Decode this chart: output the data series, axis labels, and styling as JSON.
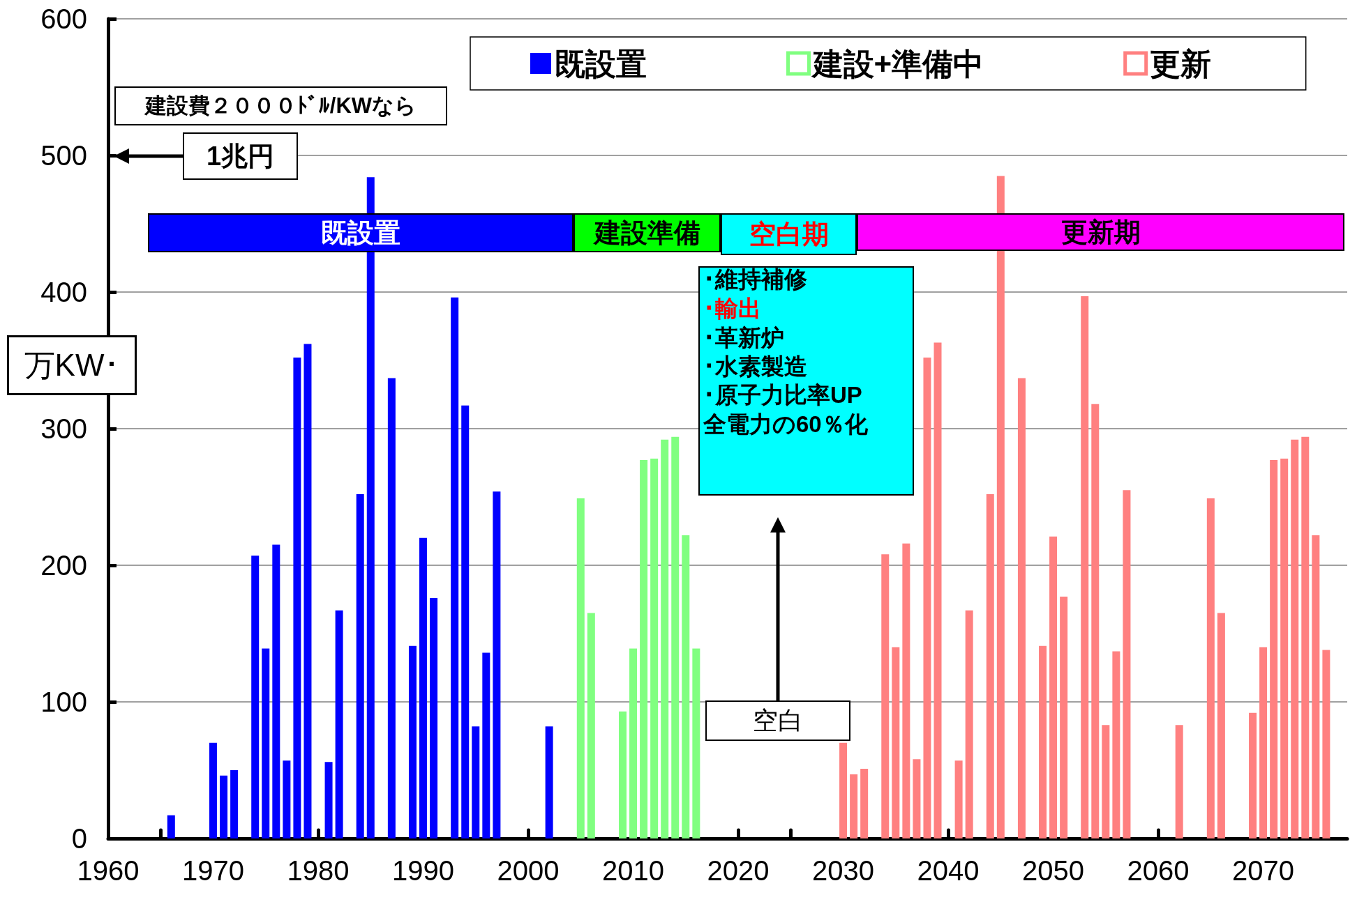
{
  "chart_data": {
    "type": "bar",
    "ylabel": "万KW･",
    "xlim": [
      1960,
      2078
    ],
    "xticks": [
      1960,
      {
        "value": 1965,
        "label": null
      },
      1970,
      {
        "value": 1975,
        "label": null
      },
      1980,
      {
        "value": 1985,
        "label": null
      },
      1990,
      {
        "value": 1995,
        "label": null
      },
      2000,
      {
        "value": 2005,
        "label": null
      },
      2010,
      {
        "value": 2015,
        "label": null
      },
      2020,
      {
        "value": 2025,
        "label": null
      },
      2030,
      {
        "value": 2035,
        "label": null
      },
      2040,
      {
        "value": 2045,
        "label": null
      },
      2050,
      {
        "value": 2055,
        "label": null
      },
      2060,
      {
        "value": 2065,
        "label": null
      },
      2070,
      {
        "value": 2075,
        "label": null
      }
    ],
    "ylim": [
      0,
      600
    ],
    "yticks": [
      0,
      100,
      200,
      300,
      400,
      500,
      600
    ],
    "grid": "y",
    "legend": "top right",
    "series": [
      {
        "name": "既設置",
        "color": "#0000ff",
        "x": [
          1966,
          1970,
          1971,
          1972,
          1974,
          1975,
          1976,
          1977,
          1978,
          1979,
          1981,
          1982,
          1984,
          1985,
          1987,
          1989,
          1990,
          1991,
          1993,
          1994,
          1995,
          1996,
          1997,
          2002
        ],
        "values": [
          17,
          70,
          46,
          50,
          207,
          139,
          215,
          57,
          352,
          362,
          56,
          167,
          252,
          484,
          337,
          141,
          220,
          176,
          396,
          317,
          82,
          136,
          254,
          82
        ]
      },
      {
        "name": "建設+準備中",
        "color": "#80ff80",
        "x": [
          2005,
          2006,
          2009,
          2010,
          2011,
          2012,
          2013,
          2014,
          2015,
          2016
        ],
        "values": [
          249,
          165,
          93,
          139,
          277,
          278,
          292,
          294,
          222,
          139
        ]
      },
      {
        "name": "更新",
        "color": "#ff8080",
        "x": [
          2030,
          2031,
          2032,
          2034,
          2035,
          2036,
          2037,
          2038,
          2039,
          2041,
          2042,
          2044,
          2045,
          2047,
          2049,
          2050,
          2051,
          2053,
          2054,
          2055,
          2056,
          2057,
          2062,
          2065,
          2066,
          2069,
          2070,
          2071,
          2072,
          2073,
          2074,
          2075,
          2076
        ],
        "values": [
          70,
          47,
          51,
          208,
          140,
          216,
          58,
          352,
          363,
          57,
          167,
          252,
          485,
          337,
          141,
          221,
          177,
          397,
          318,
          83,
          137,
          255,
          83,
          249,
          165,
          92,
          140,
          277,
          278,
          292,
          294,
          222,
          138
        ]
      }
    ],
    "annotations": [
      "建設費２０００ﾄﾞﾙ/KWなら",
      "1兆円",
      "既設置",
      "建設準備",
      "空白期",
      "更新期",
      "･維持補修",
      "･輸出",
      "･革新炉",
      "･水素製造",
      "･原子力比率UP",
      "全電力の60％化",
      "空白"
    ]
  }
}
